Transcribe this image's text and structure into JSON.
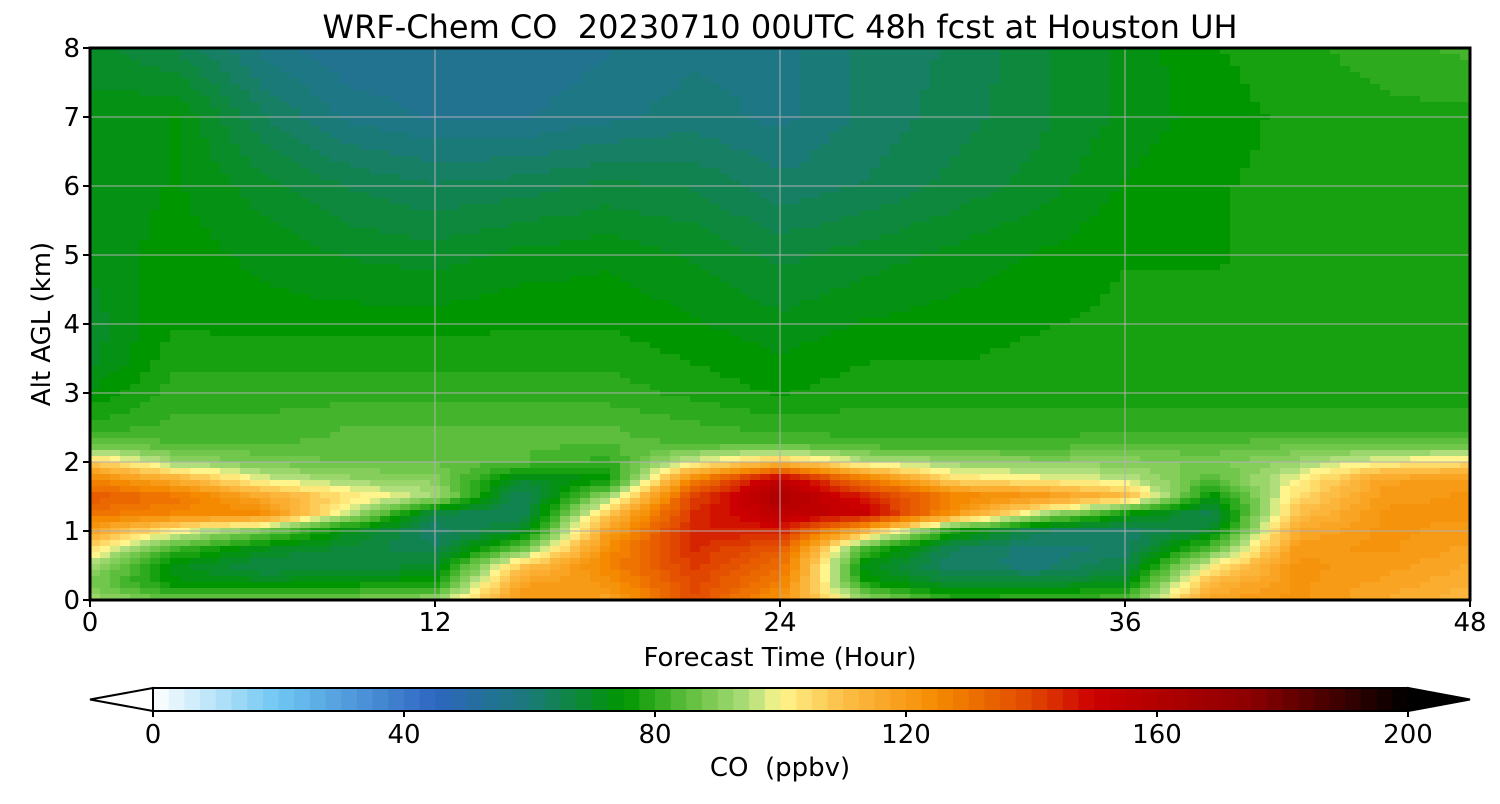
{
  "chart_data": {
    "type": "heatmap",
    "title": "WRF-Chem CO  20230710 00UTC 48h fcst at Houston UH",
    "xlabel": "Forecast Time (Hour)",
    "ylabel": "Alt AGL (km)",
    "xlim": [
      0,
      48
    ],
    "ylim": [
      0,
      8
    ],
    "xticks": [
      0,
      12,
      24,
      36,
      48
    ],
    "yticks": [
      0,
      1,
      2,
      3,
      4,
      5,
      6,
      7,
      8
    ],
    "grid": true,
    "x": [
      0,
      3,
      6,
      9,
      12,
      15,
      18,
      21,
      24,
      27,
      30,
      33,
      36,
      39,
      42,
      45,
      48
    ],
    "y": [
      0,
      0.25,
      0.5,
      0.75,
      1.0,
      1.25,
      1.5,
      1.75,
      2.0,
      2.25,
      2.5,
      3.0,
      3.5,
      4.0,
      5.0,
      6.0,
      7.0,
      8.0
    ],
    "z_units": "ppbv",
    "z": [
      [
        93,
        86,
        87,
        88,
        92,
        120,
        118,
        138,
        122,
        92,
        80,
        82,
        84,
        118,
        122,
        116,
        112
      ],
      [
        88,
        74,
        72,
        74,
        76,
        118,
        122,
        140,
        128,
        76,
        68,
        68,
        72,
        112,
        122,
        118,
        114
      ],
      [
        94,
        72,
        66,
        66,
        70,
        108,
        126,
        142,
        132,
        72,
        62,
        60,
        66,
        100,
        122,
        120,
        116
      ],
      [
        104,
        82,
        72,
        68,
        64,
        86,
        124,
        144,
        136,
        82,
        64,
        60,
        62,
        84,
        120,
        122,
        118
      ],
      [
        118,
        100,
        88,
        72,
        62,
        70,
        118,
        146,
        146,
        112,
        78,
        64,
        62,
        70,
        116,
        122,
        120
      ],
      [
        130,
        126,
        124,
        96,
        66,
        64,
        108,
        144,
        156,
        152,
        122,
        96,
        76,
        64,
        110,
        122,
        122
      ],
      [
        136,
        130,
        116,
        104,
        94,
        62,
        92,
        140,
        162,
        146,
        128,
        122,
        112,
        74,
        104,
        120,
        122
      ],
      [
        126,
        114,
        98,
        92,
        90,
        70,
        74,
        126,
        156,
        128,
        104,
        100,
        96,
        84,
        100,
        118,
        120
      ],
      [
        108,
        92,
        88,
        86,
        86,
        84,
        80,
        98,
        110,
        96,
        92,
        90,
        90,
        88,
        92,
        100,
        104
      ],
      [
        86,
        84,
        84,
        84,
        86,
        84,
        84,
        84,
        84,
        82,
        82,
        82,
        84,
        84,
        86,
        86,
        86
      ],
      [
        80,
        82,
        82,
        84,
        84,
        84,
        84,
        82,
        80,
        80,
        80,
        80,
        80,
        80,
        80,
        80,
        80
      ],
      [
        74,
        80,
        80,
        80,
        80,
        80,
        80,
        78,
        76,
        78,
        78,
        78,
        78,
        78,
        78,
        78,
        78
      ],
      [
        70,
        78,
        78,
        78,
        78,
        78,
        78,
        76,
        74,
        76,
        76,
        77,
        77,
        77,
        77,
        77,
        77
      ],
      [
        70,
        76,
        75,
        75,
        75,
        76,
        76,
        74,
        72,
        74,
        75,
        76,
        77,
        77,
        77,
        77,
        77
      ],
      [
        72,
        75,
        73,
        71,
        70,
        72,
        73,
        71,
        68,
        70,
        72,
        74,
        76,
        76,
        77,
        77,
        77
      ],
      [
        72,
        74,
        70,
        66,
        64,
        65,
        67,
        66,
        62,
        64,
        67,
        70,
        74,
        76,
        77,
        77,
        77
      ],
      [
        72,
        74,
        64,
        58,
        56,
        56,
        58,
        60,
        58,
        62,
        65,
        68,
        72,
        75,
        77,
        78,
        78
      ],
      [
        70,
        66,
        58,
        54,
        54,
        54,
        56,
        58,
        58,
        62,
        64,
        68,
        72,
        76,
        78,
        80,
        82
      ]
    ],
    "colorbar": {
      "label": "CO  (ppbv)",
      "ticks": [
        0,
        40,
        80,
        120,
        160,
        200
      ],
      "min": 0,
      "max": 200,
      "extend": "both",
      "stops": [
        {
          "v": 0,
          "color": "#ffffff"
        },
        {
          "v": 20,
          "color": "#6ec6f2"
        },
        {
          "v": 45,
          "color": "#2e66c0"
        },
        {
          "v": 60,
          "color": "#1a7a78"
        },
        {
          "v": 75,
          "color": "#009600"
        },
        {
          "v": 85,
          "color": "#5cbe3c"
        },
        {
          "v": 95,
          "color": "#b0de7c"
        },
        {
          "v": 100,
          "color": "#fff58c"
        },
        {
          "v": 110,
          "color": "#fcbe46"
        },
        {
          "v": 125,
          "color": "#f58a00"
        },
        {
          "v": 140,
          "color": "#e04600"
        },
        {
          "v": 150,
          "color": "#cc0000"
        },
        {
          "v": 175,
          "color": "#8c0000"
        },
        {
          "v": 200,
          "color": "#000000"
        }
      ]
    }
  }
}
